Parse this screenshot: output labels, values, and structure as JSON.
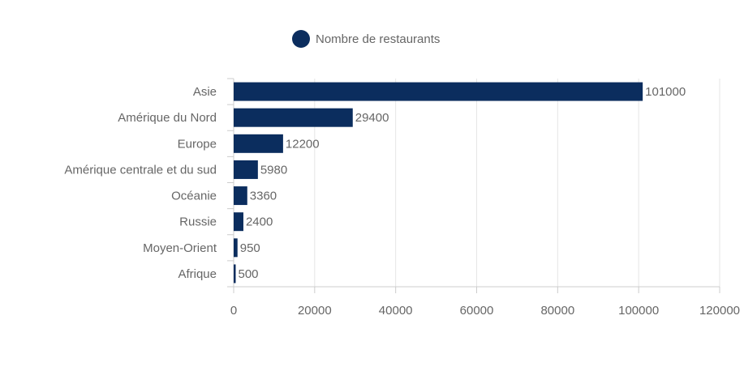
{
  "chart_data": {
    "type": "bar",
    "orientation": "horizontal",
    "categories": [
      "Asie",
      "Amérique du Nord",
      "Europe",
      "Amérique centrale et du sud",
      "Océanie",
      "Russie",
      "Moyen-Orient",
      "Afrique"
    ],
    "series": [
      {
        "name": "Nombre de restaurants",
        "values": [
          101000,
          29400,
          12200,
          5980,
          3360,
          2400,
          950,
          500
        ]
      }
    ],
    "data_labels": [
      "101000",
      "29400",
      "12200",
      "5980",
      "3360",
      "2400",
      "950",
      "500"
    ],
    "xlim": [
      0,
      120000
    ],
    "xticks": [
      0,
      20000,
      40000,
      60000,
      80000,
      100000,
      120000
    ],
    "xtick_labels": [
      "0",
      "20000",
      "40000",
      "60000",
      "80000",
      "100000",
      "120000"
    ],
    "grid": "vertical",
    "legend_position": "top",
    "colors": {
      "bar": "#0b2d5e",
      "grid": "#e6e6e6",
      "axis": "#cccccc",
      "text": "#666666"
    }
  }
}
